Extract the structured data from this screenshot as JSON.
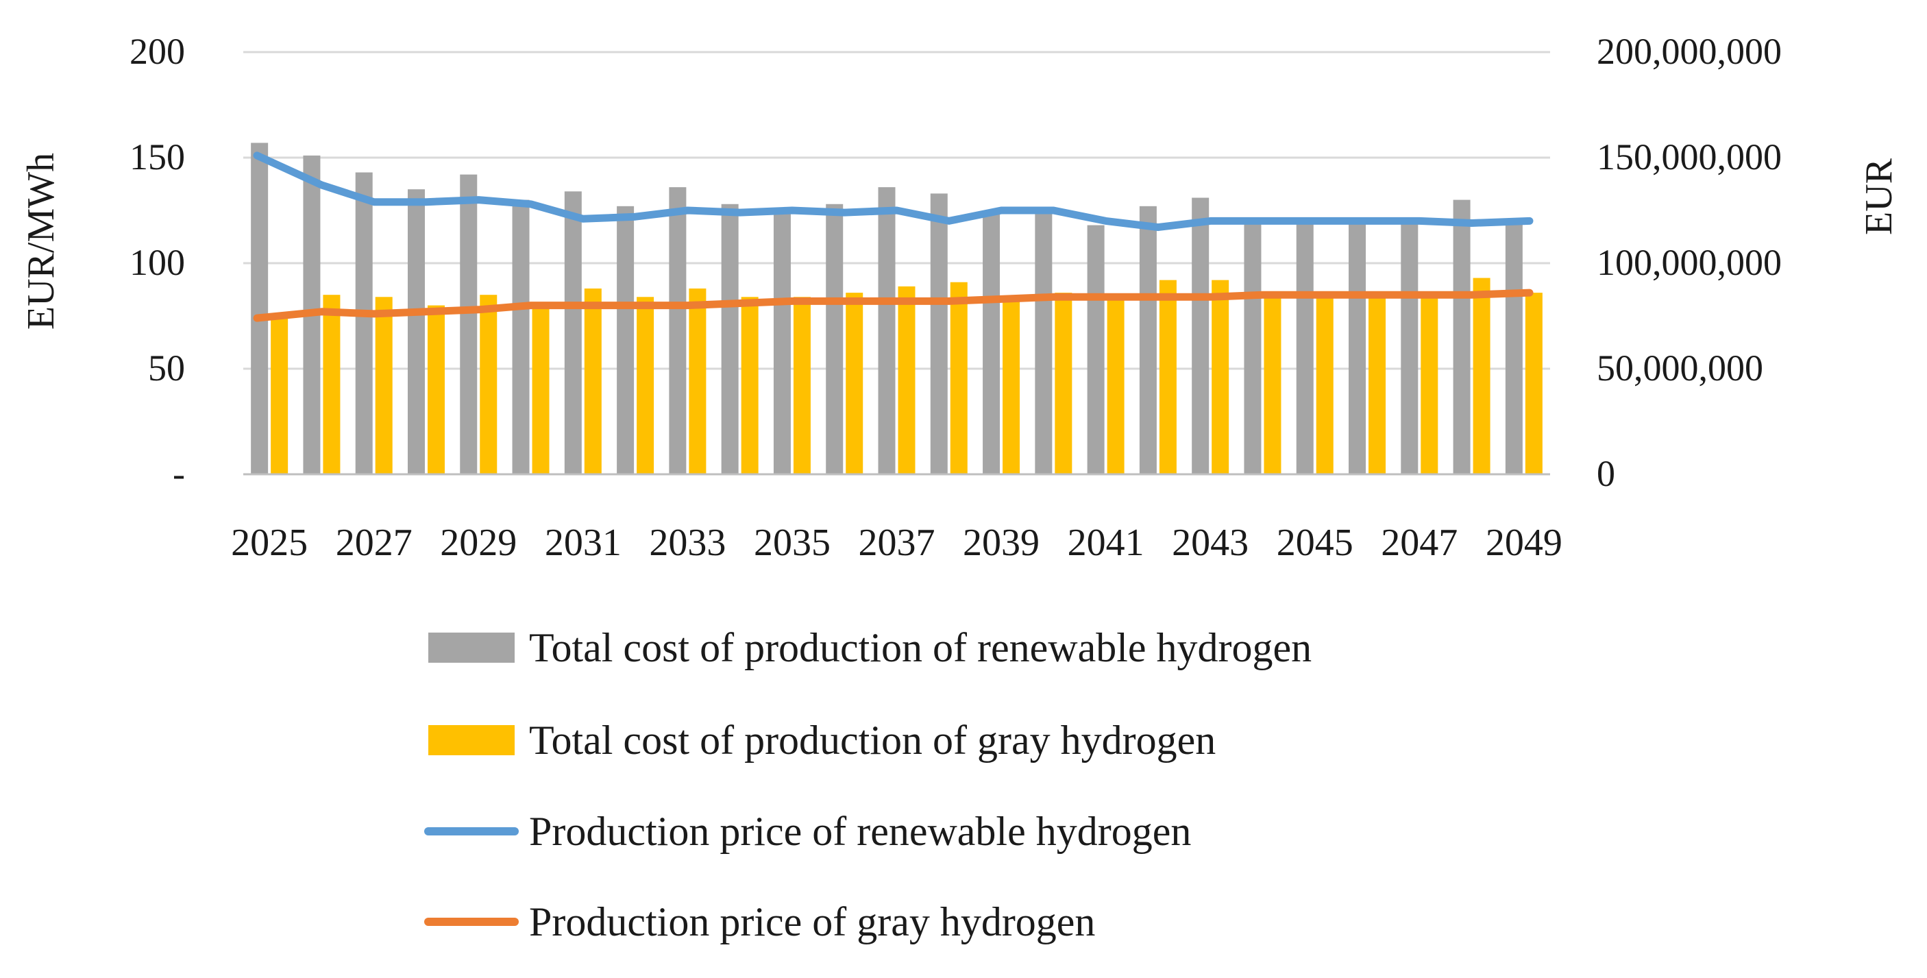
{
  "chart_data": {
    "type": "bar",
    "title": "",
    "categories": [
      "2025",
      "2026",
      "2027",
      "2028",
      "2029",
      "2030",
      "2031",
      "2032",
      "2033",
      "2034",
      "2035",
      "2036",
      "2037",
      "2038",
      "2039",
      "2040",
      "2041",
      "2042",
      "2043",
      "2044",
      "2045",
      "2046",
      "2047",
      "2048",
      "2049"
    ],
    "x_tick_labels": [
      "2025",
      "2027",
      "2029",
      "2031",
      "2033",
      "2035",
      "2037",
      "2039",
      "2041",
      "2043",
      "2045",
      "2047",
      "2049"
    ],
    "left_axis": {
      "label": "EUR/MWh",
      "range": [
        0,
        200
      ],
      "ticks": [
        0,
        50,
        100,
        150,
        200
      ],
      "tick_labels": [
        "-",
        "50",
        "100",
        "150",
        "200"
      ]
    },
    "right_axis": {
      "label": "EUR",
      "range": [
        0,
        200000000
      ],
      "ticks": [
        0,
        50000000,
        100000000,
        150000000,
        200000000
      ],
      "tick_labels": [
        "0",
        "50,000,000",
        "100,000,000",
        "150,000,000",
        "200,000,000"
      ]
    },
    "gridlines": true,
    "legend_position": "bottom",
    "series": [
      {
        "name": "Total cost of production of renewable hydrogen",
        "type": "bar",
        "axis": "right",
        "color": "#a5a5a5",
        "values": [
          157000000,
          151000000,
          143000000,
          135000000,
          142000000,
          130000000,
          134000000,
          127000000,
          136000000,
          128000000,
          124000000,
          128000000,
          136000000,
          133000000,
          125000000,
          124000000,
          118000000,
          127000000,
          131000000,
          119000000,
          119000000,
          119000000,
          119000000,
          130000000,
          119000000
        ]
      },
      {
        "name": "Total cost of production of gray hydrogen",
        "type": "bar",
        "axis": "right",
        "color": "#ffc000",
        "values": [
          75000000,
          85000000,
          84000000,
          80000000,
          85000000,
          80000000,
          88000000,
          84000000,
          88000000,
          84000000,
          84000000,
          86000000,
          89000000,
          91000000,
          84000000,
          86000000,
          84000000,
          92000000,
          92000000,
          86000000,
          86000000,
          86000000,
          86000000,
          93000000,
          86000000
        ]
      },
      {
        "name": "Production price of renewable hydrogen",
        "type": "line",
        "axis": "left",
        "color": "#5b9bd5",
        "values": [
          151,
          137,
          129,
          129,
          130,
          128,
          121,
          122,
          125,
          124,
          125,
          124,
          125,
          120,
          125,
          125,
          120,
          117,
          120,
          120,
          120,
          120,
          120,
          119,
          120
        ]
      },
      {
        "name": "Production price of gray hydrogen",
        "type": "line",
        "axis": "left",
        "color": "#ed7d31",
        "values": [
          74,
          77,
          76,
          77,
          78,
          80,
          80,
          80,
          80,
          81,
          82,
          82,
          82,
          82,
          83,
          84,
          84,
          84,
          84,
          85,
          85,
          85,
          85,
          85,
          86
        ]
      }
    ]
  }
}
